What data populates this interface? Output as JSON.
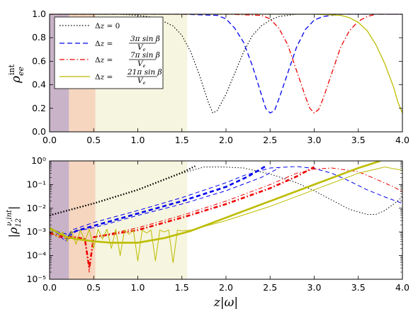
{
  "chart_data": [
    {
      "type": "line",
      "panel": "top",
      "ylabel": "ρ_ee^int",
      "xlim": [
        0.0,
        4.0
      ],
      "ylim": [
        0.0,
        1.0
      ],
      "yscale": "linear",
      "x_ticks": [
        "0.0",
        "0.5",
        "1.0",
        "1.5",
        "2.0",
        "2.5",
        "3.0",
        "3.5",
        "4.0"
      ],
      "y_ticks": [
        "0.0",
        "0.2",
        "0.4",
        "0.6",
        "0.8",
        "1.0"
      ],
      "shaded_regions": [
        {
          "x0": 0.0,
          "x1": 0.22,
          "color": "#c9b3c8"
        },
        {
          "x0": 0.22,
          "x1": 0.52,
          "color": "#f6d6bf"
        },
        {
          "x0": 0.52,
          "x1": 1.56,
          "color": "#f6f5df"
        }
      ],
      "legend": {
        "placement": "top-left",
        "entries": [
          {
            "label": "Δz = 0",
            "style": "dotted",
            "color": "#000000"
          },
          {
            "label": "Δz = 3π sin β / V_e",
            "style": "dashed",
            "color": "#0000ee"
          },
          {
            "label": "Δz = 7π sin β / V_e",
            "style": "dashdot",
            "color": "#ee0000"
          },
          {
            "label": "Δz = 21π sin β / V_e",
            "style": "solid",
            "color": "#bcbc00"
          }
        ]
      },
      "series": [
        {
          "label_ref": 0,
          "color": "#000000",
          "dash": "1.5,2.5",
          "width": 1.2,
          "x": [
            0.0,
            0.4,
            0.8,
            1.0,
            1.2,
            1.4,
            1.5,
            1.6,
            1.7,
            1.8,
            1.85,
            1.9,
            2.0,
            2.1,
            2.2,
            2.3,
            2.4,
            2.5,
            2.6,
            2.7,
            2.8,
            3.0,
            4.0
          ],
          "y": [
            1.0,
            1.0,
            1.0,
            0.99,
            0.97,
            0.9,
            0.82,
            0.68,
            0.48,
            0.25,
            0.16,
            0.18,
            0.32,
            0.5,
            0.68,
            0.82,
            0.9,
            0.95,
            0.98,
            0.99,
            1.0,
            1.0,
            1.0
          ]
        },
        {
          "label_ref": 1,
          "color": "#0000ee",
          "dash": "7,4",
          "width": 1.3,
          "x": [
            0.0,
            1.5,
            1.9,
            2.0,
            2.1,
            2.2,
            2.3,
            2.4,
            2.45,
            2.5,
            2.55,
            2.6,
            2.7,
            2.8,
            2.9,
            3.0,
            3.1,
            3.2,
            3.3,
            3.5,
            4.0
          ],
          "y": [
            1.0,
            1.0,
            0.99,
            0.96,
            0.88,
            0.76,
            0.56,
            0.32,
            0.2,
            0.16,
            0.18,
            0.28,
            0.5,
            0.72,
            0.87,
            0.95,
            0.98,
            0.99,
            1.0,
            1.0,
            1.0
          ]
        },
        {
          "label_ref": 2,
          "color": "#ee0000",
          "dash": "7,3,1.5,3",
          "width": 1.3,
          "x": [
            0.0,
            2.0,
            2.4,
            2.5,
            2.6,
            2.7,
            2.8,
            2.9,
            2.95,
            3.0,
            3.05,
            3.1,
            3.2,
            3.3,
            3.4,
            3.5,
            3.6,
            3.7,
            3.8,
            4.0
          ],
          "y": [
            1.0,
            1.0,
            0.99,
            0.96,
            0.88,
            0.74,
            0.52,
            0.3,
            0.2,
            0.16,
            0.19,
            0.28,
            0.5,
            0.72,
            0.86,
            0.94,
            0.98,
            1.0,
            1.0,
            1.0
          ]
        },
        {
          "label_ref": 3,
          "color": "#bcbc00",
          "dash": "",
          "width": 1.3,
          "x": [
            0.0,
            1.0,
            2.0,
            3.0,
            3.3,
            3.4,
            3.5,
            3.6,
            3.7,
            3.8,
            3.9,
            3.95,
            4.0
          ],
          "y": [
            1.0,
            1.0,
            1.0,
            1.0,
            0.99,
            0.97,
            0.93,
            0.86,
            0.74,
            0.58,
            0.38,
            0.25,
            0.16
          ]
        }
      ]
    },
    {
      "type": "line",
      "panel": "bottom",
      "xlabel": "z|ω|",
      "ylabel": "|ρ_12^ν,int|",
      "xlim": [
        0.0,
        4.0
      ],
      "ylim": [
        1e-05,
        1.0
      ],
      "yscale": "log",
      "x_ticks": [
        "0.0",
        "0.5",
        "1.0",
        "1.5",
        "2.0",
        "2.5",
        "3.0",
        "3.5",
        "4.0"
      ],
      "y_ticks": [
        "10⁻⁵",
        "10⁻⁴",
        "10⁻³",
        "10⁻²",
        "10⁻¹",
        "10⁰"
      ],
      "y_tick_values": [
        1e-05,
        0.0001,
        0.001,
        0.01,
        0.1,
        1.0
      ],
      "shaded_regions": [
        {
          "x0": 0.0,
          "x1": 0.22,
          "color": "#c9b3c8"
        },
        {
          "x0": 0.22,
          "x1": 0.52,
          "color": "#f6d6bf"
        },
        {
          "x0": 0.52,
          "x1": 1.56,
          "color": "#f6f5df"
        }
      ],
      "series": [
        {
          "color": "#000000",
          "dash": "1.5,2.5",
          "width": 1.0,
          "x": [
            0.0,
            0.5,
            1.0,
            1.5,
            1.75,
            2.0,
            2.2,
            2.5,
            2.8,
            3.0,
            3.2,
            3.4,
            3.6,
            3.7,
            3.8,
            3.9,
            4.0
          ],
          "y": [
            0.005,
            0.016,
            0.06,
            0.3,
            0.55,
            0.55,
            0.5,
            0.28,
            0.12,
            0.055,
            0.022,
            0.009,
            0.0055,
            0.0055,
            0.008,
            0.015,
            0.03
          ]
        },
        {
          "color": "#000000",
          "dash": "1.5,2.5",
          "width": 2.4,
          "x": [
            0.0,
            0.5,
            1.0,
            1.5,
            1.65
          ],
          "y": [
            0.005,
            0.016,
            0.06,
            0.32,
            0.6
          ]
        },
        {
          "color": "#0000ee",
          "dash": "6,4",
          "width": 1.0,
          "x": [
            0.0,
            0.1,
            0.18,
            0.25,
            0.5,
            1.0,
            1.5,
            2.0,
            2.2,
            2.5,
            2.8,
            3.0,
            3.2,
            3.4,
            3.6,
            3.8,
            4.0
          ],
          "y": [
            0.0015,
            0.0008,
            0.0004,
            0.0012,
            0.0025,
            0.008,
            0.028,
            0.12,
            0.24,
            0.5,
            0.58,
            0.48,
            0.3,
            0.14,
            0.06,
            0.03,
            0.016
          ]
        },
        {
          "color": "#0000ee",
          "dash": "6,4",
          "width": 2.6,
          "x": [
            0.0,
            0.1,
            0.2,
            0.3,
            0.5,
            1.0,
            1.5,
            2.0,
            2.25,
            2.45
          ],
          "y": [
            0.0015,
            0.0009,
            0.0006,
            0.0011,
            0.0018,
            0.006,
            0.02,
            0.08,
            0.22,
            0.6
          ]
        },
        {
          "color": "#0000ee",
          "dash": "6,4",
          "width": 1.0,
          "x": [
            0.0,
            0.1,
            0.2,
            0.3,
            0.5,
            1.0,
            1.5,
            2.0,
            2.4,
            2.6
          ],
          "y": [
            0.0015,
            0.001,
            0.0008,
            0.0011,
            0.0015,
            0.005,
            0.015,
            0.055,
            0.2,
            0.5
          ]
        },
        {
          "color": "#ee0000",
          "dash": "6,3,1.5,3",
          "width": 1.0,
          "x": [
            0.0,
            0.1,
            0.2,
            0.3,
            0.4,
            0.45,
            0.5,
            1.0,
            1.5,
            2.0,
            2.5,
            2.8,
            3.0,
            3.2,
            3.5,
            3.7,
            3.9,
            4.0
          ],
          "y": [
            0.0009,
            0.0006,
            0.0005,
            0.0006,
            0.0005,
            2e-05,
            0.0006,
            0.0015,
            0.005,
            0.02,
            0.1,
            0.3,
            0.45,
            0.5,
            0.35,
            0.17,
            0.08,
            0.05
          ]
        },
        {
          "color": "#ee0000",
          "dash": "6,3,1.5,3",
          "width": 2.6,
          "x": [
            0.0,
            0.1,
            0.2,
            0.3,
            0.4,
            0.45,
            0.5,
            1.0,
            1.5,
            2.0,
            2.5,
            2.8,
            3.0
          ],
          "y": [
            0.0009,
            0.0007,
            0.0006,
            0.0006,
            0.0005,
            3e-05,
            0.0006,
            0.0012,
            0.004,
            0.015,
            0.07,
            0.22,
            0.55
          ]
        },
        {
          "color": "#bcbc00",
          "dash": "",
          "width": 1.0,
          "x": [
            0.0,
            0.05,
            0.1,
            0.15,
            0.2,
            0.25,
            0.3,
            0.35,
            0.4,
            0.45,
            0.5,
            0.55,
            0.6,
            0.65,
            0.7,
            0.75,
            0.8,
            0.85,
            0.9,
            0.95,
            1.0,
            1.05,
            1.1,
            1.15,
            1.2,
            1.25,
            1.3,
            1.35,
            1.4,
            1.45,
            1.5,
            1.6,
            2.0,
            2.5,
            3.0,
            3.5,
            3.8,
            4.0
          ],
          "y": [
            0.0015,
            0.0008,
            0.0006,
            0.001,
            0.0004,
            0.0011,
            0.0003,
            0.0012,
            0.0004,
            0.0013,
            0.0002,
            0.0013,
            0.0005,
            0.0013,
            0.0002,
            0.0013,
            0.0001,
            0.0012,
            0.0008,
            0.0012,
            6e-05,
            0.0012,
            0.0009,
            0.0012,
            6e-05,
            0.0012,
            0.001,
            0.0012,
            5e-05,
            0.0012,
            0.0011,
            0.0012,
            0.003,
            0.012,
            0.06,
            0.3,
            0.55,
            0.4
          ]
        },
        {
          "color": "#bcbc00",
          "dash": "",
          "width": 2.6,
          "x": [
            0.0,
            0.1,
            0.2,
            0.3,
            0.5,
            0.7,
            1.0,
            1.3,
            1.6,
            2.0,
            2.5,
            3.0,
            3.5,
            3.75
          ],
          "y": [
            0.0015,
            0.0009,
            0.0006,
            0.0005,
            0.0004,
            0.00035,
            0.00035,
            0.00055,
            0.0011,
            0.004,
            0.02,
            0.1,
            0.5,
            1.0
          ]
        }
      ]
    }
  ]
}
